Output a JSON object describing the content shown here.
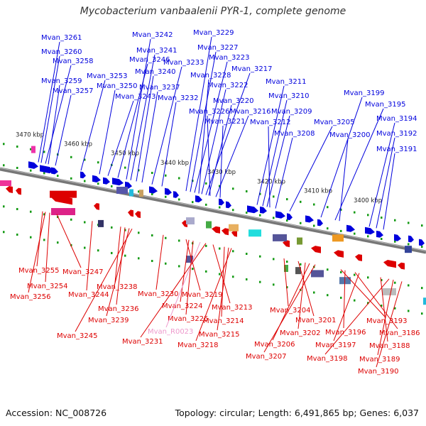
{
  "title": "Mycobacterium vanbaalenii PYR-1, complete genome",
  "footer": {
    "accession": "Accession: NC_008726",
    "summary": "Topology: circular; Length: 6,491,865 bp; Genes: 6,037"
  },
  "colors": {
    "forward": "#0000dd",
    "reverse": "#dd0000",
    "rna": "#ee99cc",
    "backbone": "#777777",
    "tick": "#119911"
  },
  "scale_labels": [
    "3470 kbp",
    "3460 kbp",
    "3450 kbp",
    "3440 kbp",
    "3430 kbp",
    "3420 kbp",
    "3410 kbp",
    "3400 kbp"
  ],
  "top_labels": [
    "Mvan_3261",
    "Mvan_3260",
    "Mvan_3258",
    "Mvan_3259",
    "Mvan_3257",
    "Mvan_3253",
    "Mvan_3250",
    "Mvan_3243",
    "Mvan_3246",
    "Mvan_3242",
    "Mvan_3241",
    "Mvan_3240",
    "Mvan_3237",
    "Mvan_3233",
    "Mvan_3232",
    "Mvan_3229",
    "Mvan_3227",
    "Mvan_3223",
    "Mvan_3228",
    "Mvan_3222",
    "Mvan_3217",
    "Mvan_3220",
    "Mvan_3226",
    "Mvan_3216",
    "Mvan_3221",
    "Mvan_3211",
    "Mvan_3210",
    "Mvan_3209",
    "Mvan_3212",
    "Mvan_3208",
    "Mvan_3205",
    "Mvan_3199",
    "Mvan_3195",
    "Mvan_3200",
    "Mvan_3194",
    "Mvan_3192",
    "Mvan_3191"
  ],
  "bottom_labels": [
    "Mvan_3255",
    "Mvan_3247",
    "Mvan_3254",
    "Mvan_3256",
    "Mvan_3244",
    "Mvan_3238",
    "Mvan_3236",
    "Mvan_3239",
    "Mvan_3245",
    "Mvan_3230",
    "Mvan_3219",
    "Mvan_3224",
    "Mvan_3225",
    "Mvan_R0023",
    "Mvan_3231",
    "Mvan_3213",
    "Mvan_3214",
    "Mvan_3215",
    "Mvan_3218",
    "Mvan_3204",
    "Mvan_3201",
    "Mvan_3202",
    "Mvan_3206",
    "Mvan_3207",
    "Mvan_3193",
    "Mvan_3196",
    "Mvan_3186",
    "Mvan_3197",
    "Mvan_3188",
    "Mvan_3198",
    "Mvan_3189",
    "Mvan_3190"
  ]
}
